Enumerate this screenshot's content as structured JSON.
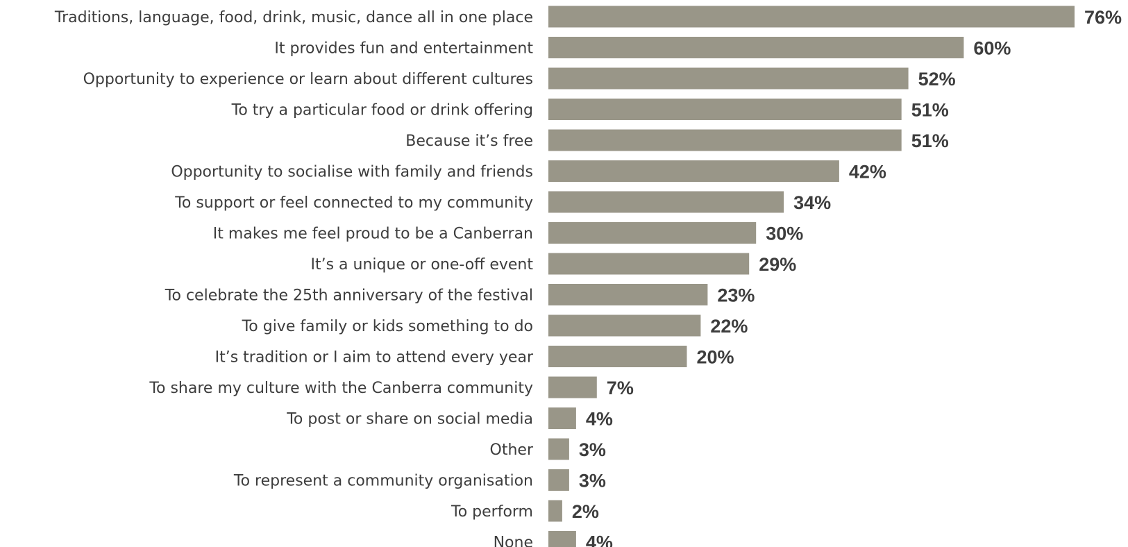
{
  "chart_data": {
    "type": "bar",
    "orientation": "horizontal",
    "categories": [
      "Traditions, language, food, drink, music, dance all in one place",
      "It provides fun and entertainment",
      "Opportunity to experience or learn about different cultures",
      "To try a particular food or drink offering",
      "Because it’s free",
      "Opportunity to socialise with family and friends",
      "To support or feel connected to my community",
      "It makes me feel proud to be a Canberran",
      "It’s a unique or one-off event",
      "To celebrate the 25th anniversary of the festival",
      "To give family or kids something to do",
      "It’s tradition or I aim to attend every year",
      "To share my culture with the Canberra community",
      "To post or share on social media",
      "Other",
      "To represent a community organisation",
      "To perform",
      "None"
    ],
    "values": [
      76,
      60,
      52,
      51,
      51,
      42,
      34,
      30,
      29,
      23,
      22,
      20,
      7,
      4,
      3,
      3,
      2,
      4
    ],
    "value_labels": [
      "76%",
      "60%",
      "52%",
      "51%",
      "51%",
      "42%",
      "34%",
      "30%",
      "29%",
      "23%",
      "22%",
      "20%",
      "7%",
      "4%",
      "3%",
      "3%",
      "2%",
      "4%"
    ],
    "unit": "%",
    "title": "",
    "xlabel": "",
    "ylabel": "",
    "xlim": [
      0,
      76
    ],
    "grid": false,
    "legend": false,
    "colors": {
      "bar": "#999688",
      "label_text": "#3d3d3d",
      "background": "#ffffff"
    }
  }
}
